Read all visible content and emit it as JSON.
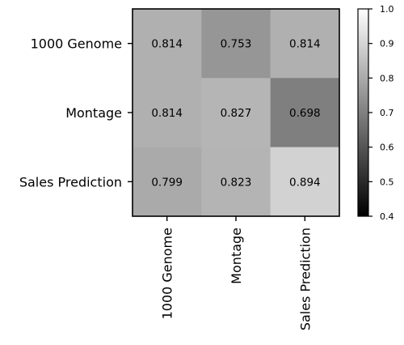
{
  "chart_data": {
    "type": "heatmap",
    "rows": [
      "1000 Genome",
      "Montage",
      "Sales Prediction"
    ],
    "columns": [
      "1000 Genome",
      "Montage",
      "Sales Prediction"
    ],
    "values": [
      [
        0.814,
        0.753,
        0.814
      ],
      [
        0.814,
        0.827,
        0.698
      ],
      [
        0.799,
        0.823,
        0.894
      ]
    ],
    "colormap": "gray",
    "colorbar": {
      "range": [
        0.4,
        1.0
      ],
      "ticks": [
        "0.4",
        "0.5",
        "0.6",
        "0.7",
        "0.8",
        "0.9",
        "1.0"
      ]
    },
    "title": "",
    "xlabel": "",
    "ylabel": ""
  }
}
